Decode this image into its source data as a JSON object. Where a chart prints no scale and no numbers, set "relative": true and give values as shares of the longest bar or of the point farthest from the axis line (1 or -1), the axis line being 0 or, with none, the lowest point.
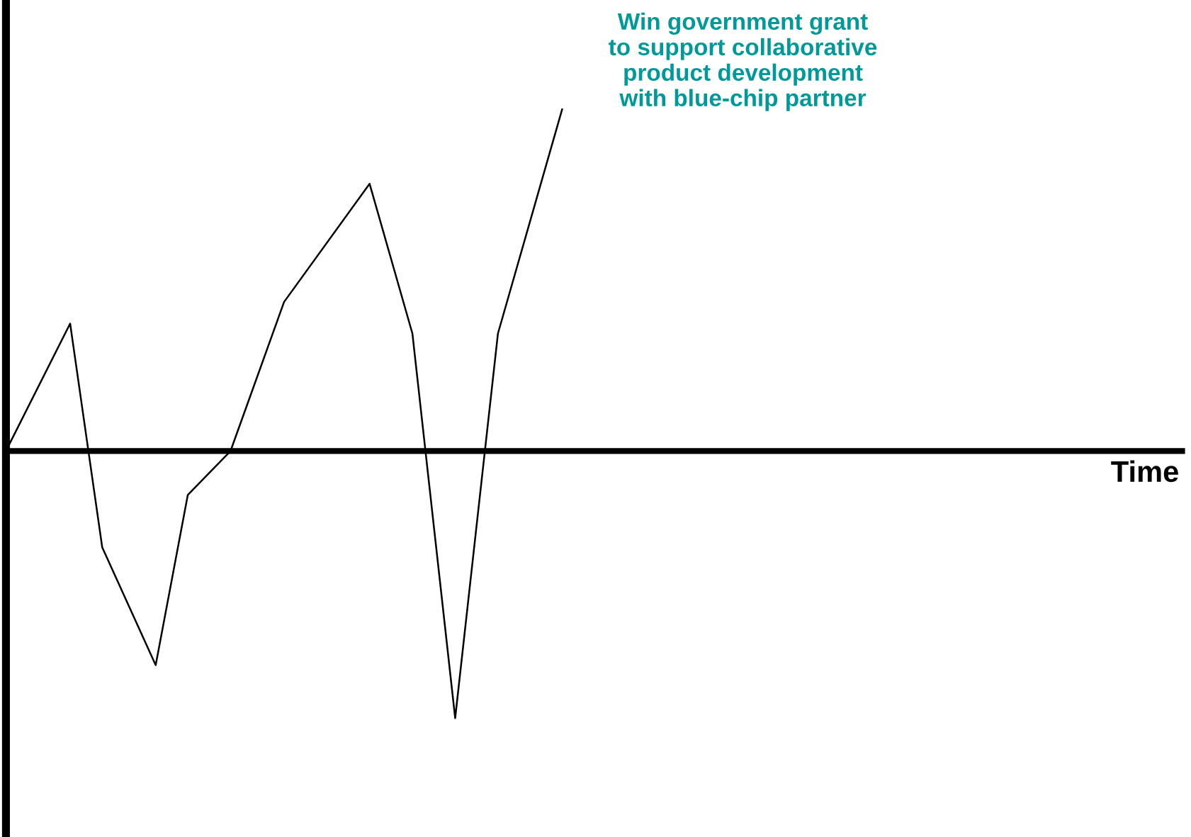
{
  "chart_data": {
    "type": "line",
    "relative": true,
    "annotations": [
      "Win government grant\nto support collaborative\nproduct development\nwith blue-chip partner",
      "Time"
    ],
    "categories": [
      null,
      null,
      null,
      null,
      null,
      null,
      null,
      null,
      null,
      null,
      null,
      null,
      null,
      null,
      null,
      null,
      null,
      null,
      null,
      null,
      null,
      null,
      null,
      null,
      null,
      null,
      null,
      null,
      null,
      null,
      null,
      null,
      null,
      null,
      null,
      null,
      null,
      null,
      null,
      null,
      null,
      null,
      null,
      null,
      null,
      null,
      null,
      null,
      null,
      null,
      null,
      null,
      null
    ],
    "marker": "none",
    "line_style": "solid",
    "series": [
      {
        "color": "#000000",
        "values": [
          0,
          null,
          null,
          null,
          null,
          null,
          0.373,
          null,
          null,
          -0.282,
          null,
          null,
          null,
          null,
          -0.627,
          null,
          null,
          -0.129,
          null,
          null,
          null,
          0,
          null,
          null,
          null,
          null,
          0.436,
          null,
          null,
          null,
          null,
          null,
          null,
          null,
          0.782,
          null,
          null,
          null,
          0.344,
          null,
          null,
          null,
          -0.782,
          null,
          null,
          null,
          0.344,
          null,
          null,
          null,
          null,
          null,
          1
        ]
      }
    ]
  }
}
